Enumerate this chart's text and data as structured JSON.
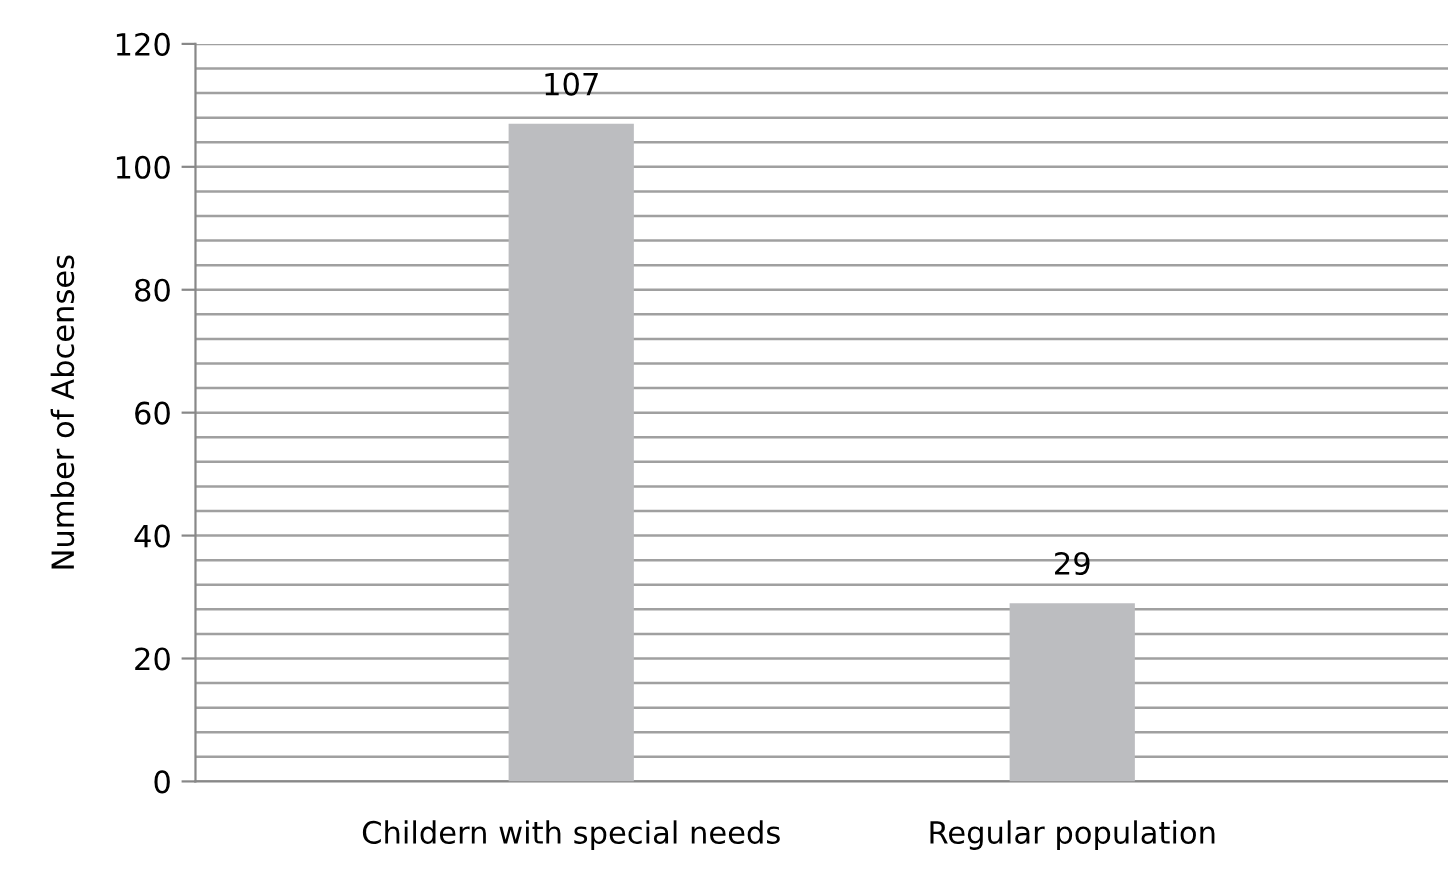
{
  "chart_data": {
    "type": "bar",
    "ylabel": "Number of Abcenses",
    "categories": [
      "Childern with special needs",
      "Regular population"
    ],
    "values": [
      107,
      29
    ],
    "color": "#bcbdc0",
    "ylim": [
      0,
      120
    ],
    "yticks": [
      0,
      {
        "value": 4,
        "label": null
      },
      {
        "value": 8,
        "label": null
      },
      {
        "value": 12,
        "label": null
      },
      {
        "value": 16,
        "label": null
      },
      20,
      {
        "value": 24,
        "label": null
      },
      {
        "value": 28,
        "label": null
      },
      {
        "value": 32,
        "label": null
      },
      {
        "value": 36,
        "label": null
      },
      40,
      {
        "value": 44,
        "label": null
      },
      {
        "value": 48,
        "label": null
      },
      {
        "value": 52,
        "label": null
      },
      {
        "value": 56,
        "label": null
      },
      60,
      {
        "value": 64,
        "label": null
      },
      {
        "value": 68,
        "label": null
      },
      {
        "value": 72,
        "label": null
      },
      {
        "value": 76,
        "label": null
      },
      80,
      {
        "value": 84,
        "label": null
      },
      {
        "value": 88,
        "label": null
      },
      {
        "value": 92,
        "label": null
      },
      {
        "value": 96,
        "label": null
      },
      100,
      {
        "value": 104,
        "label": null
      },
      {
        "value": 108,
        "label": null
      },
      {
        "value": 112,
        "label": null
      },
      {
        "value": 116,
        "label": null
      },
      120
    ],
    "grid": "y",
    "data_labels": true
  }
}
